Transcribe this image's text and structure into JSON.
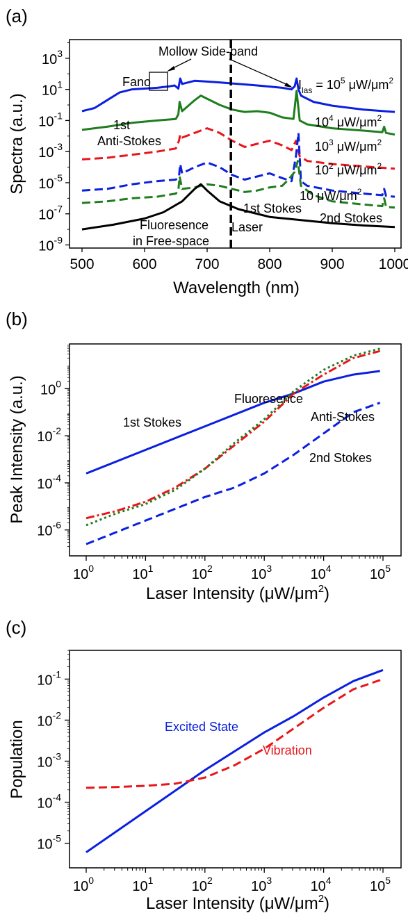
{
  "chart_data": [
    {
      "panel_label": "(a)",
      "type": "line",
      "xlabel": "Wavelength  (nm)",
      "ylabel": "Spectra  (a.u.)",
      "xlim": [
        480,
        1010
      ],
      "xticks": [
        "500",
        "600",
        "700",
        "800",
        "900",
        "1000"
      ],
      "ytick_exponents": [
        "3",
        "1",
        "-1",
        "-3",
        "-5",
        "-7",
        "-9"
      ],
      "ylim_log10": [
        -9.2,
        4.2
      ],
      "colors": {
        "blue": "#0b1fe0",
        "green": "#1e7d1e",
        "red": "#e8161b",
        "black": "#000000"
      },
      "series": [
        {
          "style": "blue-solid",
          "x": [
            500,
            520,
            540,
            560,
            580,
            600,
            620,
            640,
            648,
            654,
            657,
            660,
            680,
            700,
            720,
            740,
            760,
            780,
            800,
            820,
            835,
            840,
            843,
            846,
            850,
            870,
            900,
            950,
            1000
          ],
          "y_log10": [
            -0.4,
            -0.2,
            0.3,
            0.8,
            1.0,
            1.05,
            1.1,
            1.2,
            1.25,
            1.05,
            1.7,
            1.35,
            1.55,
            1.5,
            1.45,
            1.38,
            1.32,
            1.25,
            1.18,
            1.1,
            1.0,
            1.2,
            1.7,
            1.0,
            0.6,
            0.2,
            -0.05,
            -0.3,
            -0.45
          ]
        },
        {
          "style": "green-solid",
          "x": [
            500,
            540,
            580,
            620,
            650,
            654,
            656,
            660,
            680,
            690,
            700,
            720,
            740,
            760,
            780,
            800,
            820,
            838,
            843,
            848,
            860,
            900,
            950,
            980,
            983,
            986,
            1000
          ],
          "y_log10": [
            -1.6,
            -1.4,
            -1.15,
            -1.0,
            -0.9,
            -0.6,
            0.2,
            -0.4,
            0.3,
            0.6,
            0.4,
            0.0,
            -0.3,
            -0.45,
            -0.4,
            -0.5,
            -0.8,
            -0.9,
            0.9,
            -1.0,
            -1.25,
            -1.5,
            -1.65,
            -1.75,
            -1.4,
            -1.8,
            -1.9
          ]
        },
        {
          "style": "red-dashed",
          "x": [
            500,
            540,
            580,
            620,
            650,
            655,
            657,
            660,
            680,
            700,
            720,
            740,
            760,
            780,
            800,
            820,
            835,
            842,
            848,
            860,
            900,
            950,
            1000
          ],
          "y_log10": [
            -3.5,
            -3.4,
            -3.2,
            -3.0,
            -2.8,
            -2.3,
            -1.9,
            -2.1,
            -1.8,
            -1.5,
            -1.8,
            -2.3,
            -2.7,
            -2.5,
            -2.3,
            -2.6,
            -2.9,
            -2.3,
            -3.3,
            -3.6,
            -3.8,
            -3.95,
            -4.1
          ]
        },
        {
          "style": "blue-dashed",
          "x": [
            500,
            540,
            580,
            620,
            650,
            655,
            657,
            660,
            680,
            700,
            720,
            740,
            760,
            780,
            800,
            820,
            835,
            842,
            846,
            850,
            860,
            900,
            950,
            980,
            983,
            986,
            1000
          ],
          "y_log10": [
            -5.5,
            -5.4,
            -5.1,
            -4.9,
            -4.8,
            -4.6,
            -3.8,
            -4.4,
            -4.0,
            -3.7,
            -4.0,
            -4.5,
            -4.8,
            -4.6,
            -4.4,
            -4.7,
            -4.9,
            -3.3,
            -1.8,
            -4.9,
            -5.2,
            -5.5,
            -5.7,
            -5.8,
            -5.4,
            -5.85,
            -5.9
          ]
        },
        {
          "style": "green-dashed",
          "x": [
            500,
            540,
            580,
            620,
            650,
            654,
            656,
            660,
            680,
            700,
            720,
            740,
            760,
            780,
            800,
            820,
            830,
            840,
            845,
            850,
            870,
            900,
            950,
            980,
            983,
            986,
            1000
          ],
          "y_log10": [
            -6.3,
            -6.2,
            -6.0,
            -5.9,
            -5.7,
            -5.5,
            -4.6,
            -5.4,
            -5.3,
            -5.1,
            -5.2,
            -5.4,
            -5.6,
            -5.5,
            -5.3,
            -5.2,
            -4.8,
            -4.3,
            -3.6,
            -5.2,
            -5.8,
            -6.2,
            -6.4,
            -6.5,
            -6.0,
            -6.55,
            -6.6
          ]
        },
        {
          "style": "black-solid",
          "x": [
            500,
            550,
            600,
            630,
            660,
            680,
            690,
            700,
            720,
            750,
            800,
            850,
            900,
            950,
            1000
          ],
          "y_log10": [
            -8.0,
            -7.7,
            -7.3,
            -6.9,
            -6.2,
            -5.4,
            -5.1,
            -5.5,
            -6.2,
            -6.7,
            -7.2,
            -7.4,
            -7.6,
            -7.75,
            -7.85
          ]
        }
      ],
      "laser_line_x": 738,
      "annotations": {
        "mollow": "Mollow Side-band",
        "fano": "Fano",
        "i_las_main": "I",
        "i_las_sub": "las",
        "i_las_rest": " = 10",
        "i_las_exp": "5",
        "i_las_unit": " μW/μm",
        "i_las_unit_exp": "2",
        "i4_base": "10",
        "i4_exp": "4",
        "i4_unit": " μW/μm",
        "i4_unit_exp": "2",
        "i3_base": "10",
        "i3_exp": "3",
        "i3_unit": " μW/μm",
        "i3_unit_exp": "2",
        "i2_base": "10",
        "i2_exp": "2",
        "i2_unit": " μW/μm",
        "i2_unit_exp": "2",
        "i1": "10 μW/μm",
        "i1_exp": "2",
        "anti1": "1st",
        "anti2": "Anti-Stokes",
        "stokes1": "1st Stokes",
        "stokes2": "2nd Stokes",
        "laser": "Laser",
        "fluo1": "Fluoresence",
        "fluo2": "in Free-space"
      }
    },
    {
      "panel_label": "(b)",
      "type": "line",
      "xlabel_main": "Laser Intensity  (μW/μm",
      "xlabel_exp": "2",
      "xlabel_close": ")",
      "ylabel": "Peak  Intensity  (a.u.)",
      "x_exponents": [
        "0",
        "1",
        "2",
        "3",
        "4",
        "5"
      ],
      "ytick_exponents": [
        "0",
        "-2",
        "-4",
        "-6"
      ],
      "ylim_log10": [
        -7.1,
        1.9
      ],
      "series": [
        {
          "name": "Fluoresence",
          "style": "blue-solid",
          "x_log10": [
            0,
            1,
            2,
            3,
            3.5,
            4,
            4.5,
            4.95
          ],
          "y_log10": [
            -3.6,
            -2.6,
            -1.6,
            -0.6,
            -0.2,
            0.3,
            0.6,
            0.75
          ]
        },
        {
          "name": "Anti-Stokes",
          "style": "red-dashdot",
          "x_log10": [
            0,
            0.5,
            1,
            1.5,
            2,
            2.5,
            3,
            3.5,
            4,
            4.5,
            4.95
          ],
          "y_log10": [
            -5.5,
            -5.2,
            -4.8,
            -4.2,
            -3.4,
            -2.4,
            -1.4,
            -0.2,
            0.6,
            1.3,
            1.6
          ]
        },
        {
          "name": "",
          "style": "green-dotted",
          "x_log10": [
            0,
            0.5,
            1,
            1.5,
            2,
            2.5,
            3,
            3.5,
            4,
            4.5,
            4.95
          ],
          "y_log10": [
            -5.8,
            -5.3,
            -4.9,
            -4.3,
            -3.4,
            -2.3,
            -1.3,
            -0.1,
            0.8,
            1.4,
            1.7
          ]
        },
        {
          "name": "2nd Stokes",
          "style": "blue-dashed",
          "x_log10": [
            0,
            1,
            2,
            2.5,
            3,
            3.5,
            4,
            4.5,
            4.95
          ],
          "y_log10": [
            -6.6,
            -5.6,
            -4.6,
            -4.2,
            -3.6,
            -2.8,
            -1.9,
            -1.0,
            -0.6
          ]
        }
      ],
      "labels": {
        "fluo": "Fluoresence",
        "anti": "Anti-Stokes",
        "s1": "1st Stokes",
        "s2": "2nd Stokes"
      }
    },
    {
      "panel_label": "(c)",
      "type": "line",
      "xlabel_main": "Laser Intensity  (μW/μm",
      "xlabel_exp": "2",
      "xlabel_close": ")",
      "ylabel": "Population",
      "x_exponents": [
        "0",
        "1",
        "2",
        "3",
        "4",
        "5"
      ],
      "ytick_exponents": [
        "-1",
        "-2",
        "-3",
        "-4",
        "-5"
      ],
      "ylim_log10": [
        -5.6,
        -0.3
      ],
      "series": [
        {
          "name": "Excited State",
          "style": "blue-solid",
          "x_log10": [
            0,
            1,
            2,
            3,
            3.5,
            4,
            4.5,
            5
          ],
          "y_log10": [
            -5.22,
            -4.22,
            -3.22,
            -2.3,
            -1.9,
            -1.45,
            -1.05,
            -0.78
          ]
        },
        {
          "name": "Vibration",
          "style": "red-dashed",
          "x_log10": [
            0,
            0.5,
            1,
            1.5,
            2,
            2.5,
            3,
            3.5,
            4,
            4.5,
            5
          ],
          "y_log10": [
            -3.65,
            -3.63,
            -3.6,
            -3.55,
            -3.4,
            -3.1,
            -2.7,
            -2.2,
            -1.7,
            -1.25,
            -1.0
          ]
        }
      ],
      "labels": {
        "excited": "Excited State",
        "vibration": "Vibration"
      }
    }
  ]
}
